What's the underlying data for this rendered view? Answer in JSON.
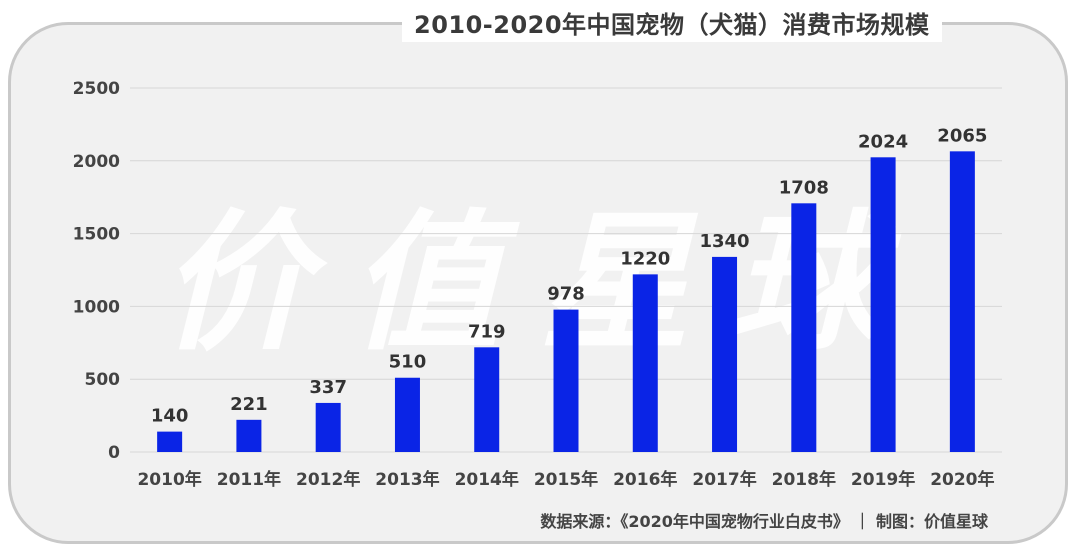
{
  "chart_data": {
    "type": "bar",
    "title": "2010-2020年中国宠物（犬猫）消费市场规模",
    "categories": [
      "2010年",
      "2011年",
      "2012年",
      "2013年",
      "2014年",
      "2015年",
      "2016年",
      "2017年",
      "2018年",
      "2019年",
      "2020年"
    ],
    "values": [
      140,
      221,
      337,
      510,
      719,
      978,
      1220,
      1340,
      1708,
      2024,
      2065
    ],
    "data_labels": [
      "140",
      "221",
      "337",
      "510",
      "719",
      "978",
      "1220",
      "1340",
      "1708",
      "2024",
      "2065"
    ],
    "yticks": [
      "0",
      "500",
      "1000",
      "1500",
      "2000",
      "2500"
    ],
    "ylim": [
      0,
      2500
    ],
    "grid": true,
    "legend": "none",
    "bar_color": "#0a24e6"
  },
  "watermark": "价值星球",
  "source_note": "数据来源：《2020年中国宠物行业白皮书》 ｜ 制图：价值星球"
}
